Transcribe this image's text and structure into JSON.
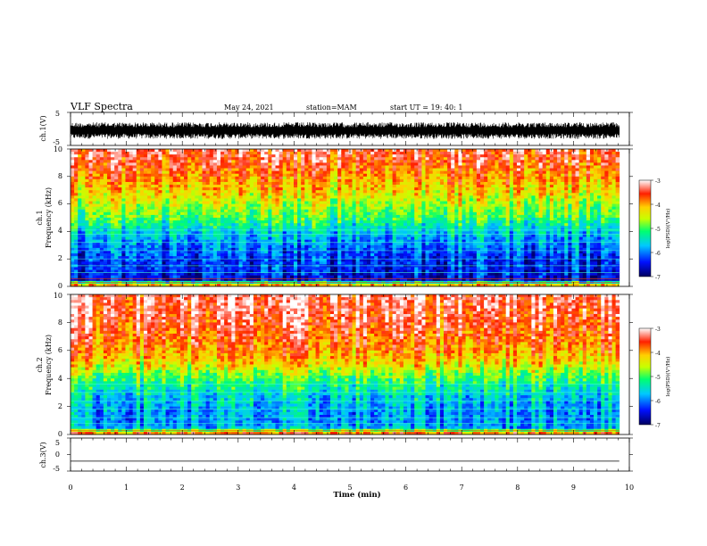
{
  "header": {
    "title": "VLF Spectra",
    "date": "May 24, 2021",
    "station": "station=MAM",
    "start": "start  UT =   19: 40: 1"
  },
  "chart_data": {
    "type": "heatmap",
    "x_axis": {
      "label": "Time (min)",
      "range": [
        0,
        10
      ],
      "ticks": [
        "0",
        "1",
        "2",
        "3",
        "4",
        "5",
        "6",
        "7",
        "8",
        "9",
        "10"
      ]
    },
    "panels": [
      {
        "kind": "waveform",
        "ylabel": "ch.1(V)",
        "ylim": [
          -5,
          5
        ],
        "ticks": [
          "5",
          "-5"
        ],
        "description_values": {
          "amplitude_min": -3,
          "amplitude_max": 2
        },
        "data_extent_min": 9.82
      },
      {
        "kind": "spectrogram",
        "ylabel_channel": "ch.1",
        "ylabel": "Frequency (kHz)",
        "ylim": [
          0,
          10
        ],
        "ticks": [
          "0",
          "2",
          "4",
          "6",
          "8",
          "10"
        ],
        "data_extent_min": 9.82,
        "colorbar": {
          "label": "log(PSD)(V²/Hz)",
          "range": [
            -7,
            -3
          ],
          "ticks": [
            "-3",
            "-4",
            "-5",
            "-6",
            "-7"
          ]
        },
        "psd_profile_khz": [
          0,
          0.5,
          1,
          2,
          3,
          4,
          5,
          6,
          7,
          8,
          9,
          10
        ],
        "psd_profile_log": [
          -3.5,
          -6.6,
          -6.4,
          -6.3,
          -6.0,
          -5.6,
          -5.0,
          -4.6,
          -4.2,
          -3.9,
          -3.6,
          -3.4
        ],
        "horizontal_lines_khz": [
          0.3,
          0.55,
          1.0,
          1.5,
          2.0,
          2.6,
          3.2,
          3.8,
          4.1
        ]
      },
      {
        "kind": "spectrogram",
        "ylabel_channel": "ch.2",
        "ylabel": "Frequency (kHz)",
        "ylim": [
          0,
          10
        ],
        "ticks": [
          "0",
          "2",
          "4",
          "6",
          "8",
          "10"
        ],
        "data_extent_min": 9.82,
        "colorbar": {
          "label": "log(PSD)(V²/Hz)",
          "range": [
            -7,
            -3
          ],
          "ticks": [
            "-3",
            "-4",
            "-5",
            "-6",
            "-7"
          ]
        },
        "psd_profile_khz": [
          0,
          0.5,
          1,
          2,
          3,
          4,
          5,
          6,
          7,
          8,
          9,
          10
        ],
        "psd_profile_log": [
          -3.4,
          -5.8,
          -5.9,
          -5.8,
          -5.5,
          -5.0,
          -4.3,
          -3.9,
          -3.7,
          -3.5,
          -3.4,
          -3.3
        ],
        "horizontal_lines_khz": [
          0.3,
          0.8,
          1.2,
          1.8,
          2.4,
          3.0,
          3.6
        ]
      },
      {
        "kind": "waveform",
        "ylabel": "ch.3(V)",
        "ylim": [
          -5,
          5
        ],
        "ticks": [
          "5",
          "0",
          "-5"
        ],
        "description_values": {
          "constant_level": -2
        },
        "data_extent_min": 9.82
      }
    ]
  }
}
